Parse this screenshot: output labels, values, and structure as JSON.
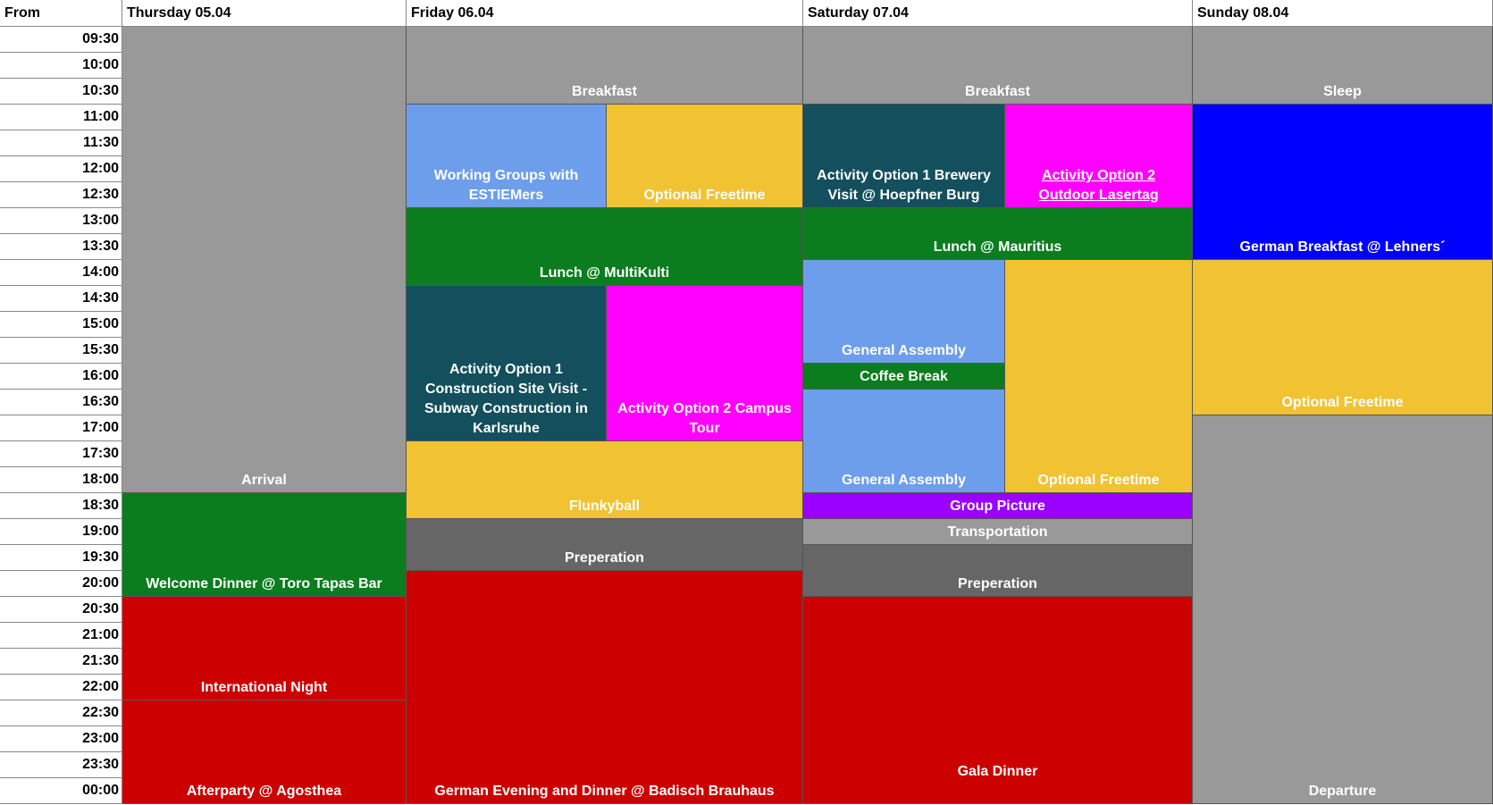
{
  "header": [
    "From",
    "Thursday 05.04",
    "Friday 06.04",
    "Saturday 07.04",
    "Sunday 08.04"
  ],
  "times": [
    "09:30",
    "10:00",
    "10:30",
    "11:00",
    "11:30",
    "12:00",
    "12:30",
    "13:00",
    "13:30",
    "14:00",
    "14:30",
    "15:00",
    "15:30",
    "16:00",
    "16:30",
    "17:00",
    "17:30",
    "18:00",
    "18:30",
    "19:00",
    "19:30",
    "20:00",
    "20:30",
    "21:00",
    "21:30",
    "22:00",
    "22:30",
    "23:00",
    "23:30",
    "00:00"
  ],
  "days": [
    {
      "events": [
        {
          "label": "Arrival"
        },
        {
          "label": "Welcome Dinner @ Toro Tapas Bar"
        },
        {
          "label": "International Night"
        },
        {
          "label": "Afterparty @ Agosthea"
        }
      ]
    },
    {
      "events": [
        {
          "label": "Breakfast"
        },
        {
          "label": "Working Groups with ESTIEMers"
        },
        {
          "label": "Optional Freetime"
        },
        {
          "label": "Lunch @ MultiKulti"
        },
        {
          "label": "Activity Option 1 Construction Site Visit - Subway Construction in Karlsruhe"
        },
        {
          "label": "Activity Option 2 Campus Tour"
        },
        {
          "label": "Flunkyball"
        },
        {
          "label": "Preperation"
        },
        {
          "label": "German Evening and Dinner @ Badisch Brauhaus"
        }
      ]
    },
    {
      "events": [
        {
          "label": "Breakfast"
        },
        {
          "label": "Activity Option 1 Brewery Visit @ Hoepfner Burg"
        },
        {
          "label": "Activity Option 2 Outdoor Lasertag"
        },
        {
          "label": "Lunch @ Mauritius"
        },
        {
          "label": "General Assembly"
        },
        {
          "label": "Coffee Break"
        },
        {
          "label": "General Assembly"
        },
        {
          "label": "Optional Freetime"
        },
        {
          "label": "Group Picture"
        },
        {
          "label": "Transportation"
        },
        {
          "label": "Preperation"
        },
        {
          "label": "Gala Dinner"
        }
      ]
    },
    {
      "events": [
        {
          "label": "Sleep"
        },
        {
          "label": "German Breakfast @ Lehners´"
        },
        {
          "label": "Optional Freetime"
        },
        {
          "label": "Departure"
        }
      ]
    }
  ]
}
